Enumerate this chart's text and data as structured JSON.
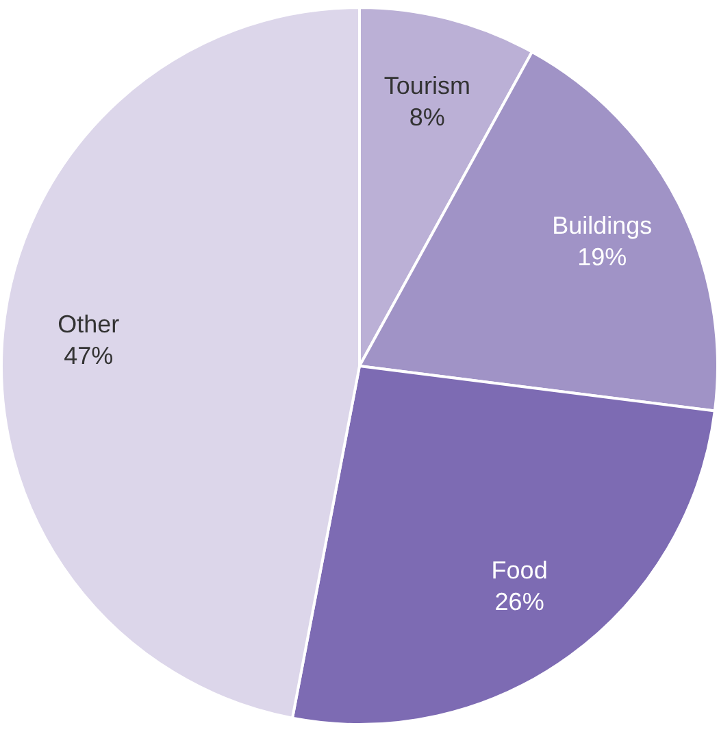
{
  "chart_data": {
    "type": "pie",
    "categories": [
      "Tourism",
      "Buildings",
      "Food",
      "Other"
    ],
    "values": [
      8,
      19,
      26,
      47
    ],
    "colors": [
      "#bbb0d6",
      "#a093c6",
      "#7d6bb3",
      "#dcd6ea"
    ],
    "value_labels": [
      "8%",
      "19%",
      "26%",
      "47%"
    ],
    "legend": false
  }
}
